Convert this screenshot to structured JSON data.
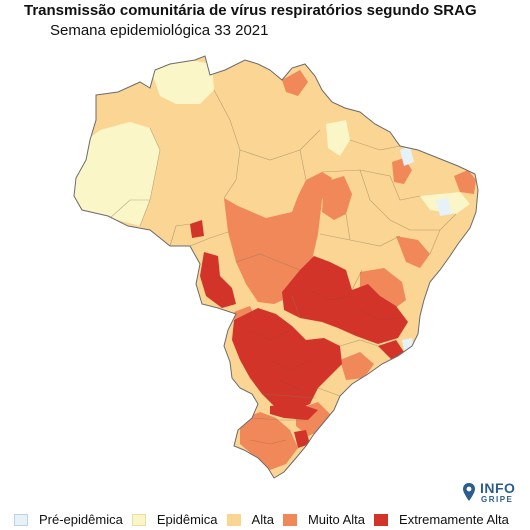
{
  "title": "Transmissão comunitária de vírus respiratórios segundo SRAG",
  "subtitle": "Semana epidemiológica 33 2021",
  "logo": {
    "line1": "INFO",
    "line2": "GRIPE"
  },
  "legend": [
    {
      "key": "pre",
      "label": "Pré-epidêmica",
      "color": "#e6f1f8"
    },
    {
      "key": "epi",
      "label": "Epidêmica",
      "color": "#fbf6c8"
    },
    {
      "key": "alta",
      "label": "Alta",
      "color": "#fad593"
    },
    {
      "key": "muito",
      "label": "Muito Alta",
      "color": "#f0885a"
    },
    {
      "key": "extrema",
      "label": "Extremamente Alta",
      "color": "#d3342a"
    }
  ]
}
